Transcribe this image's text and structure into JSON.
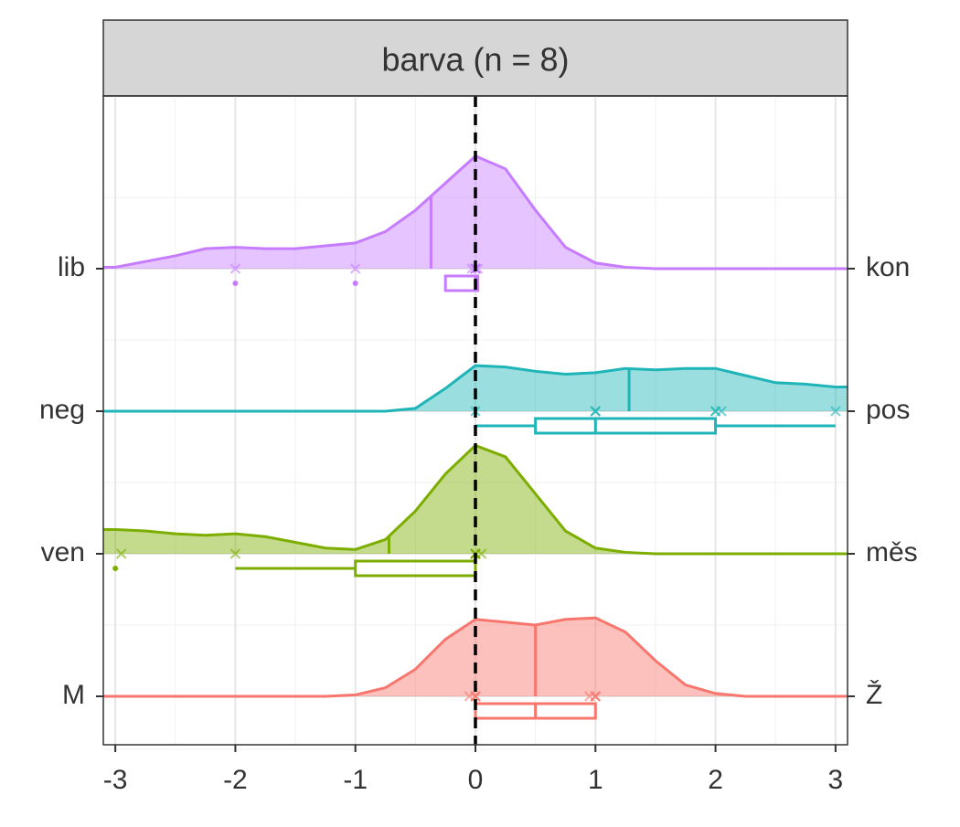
{
  "chart_data": {
    "type": "ridgeline",
    "title": "barva (n = 8)",
    "xlim": [
      -3.1,
      3.1
    ],
    "xticks": [
      -3,
      -2,
      -1,
      0,
      1,
      2,
      3
    ],
    "grid": true,
    "reference_line": 0,
    "density_x": [
      -3.1,
      -3,
      -2.75,
      -2.5,
      -2.25,
      -2,
      -1.75,
      -1.5,
      -1.25,
      -1,
      -0.75,
      -0.5,
      -0.25,
      0,
      0.25,
      0.5,
      0.75,
      1,
      1.25,
      1.5,
      1.75,
      2,
      2.25,
      2.5,
      2.75,
      3,
      3.1
    ],
    "categories": [
      "lib",
      "neg",
      "ven",
      "M"
    ],
    "right_labels": [
      "kon",
      "pos",
      "měs",
      "Ž"
    ],
    "series": [
      {
        "name": "lib",
        "color": "#c77cff",
        "density": [
          0.01,
          0.01,
          0.05,
          0.09,
          0.14,
          0.15,
          0.14,
          0.14,
          0.16,
          0.18,
          0.26,
          0.41,
          0.6,
          0.79,
          0.7,
          0.41,
          0.15,
          0.04,
          0.01,
          0,
          0,
          0,
          0,
          0,
          0,
          0,
          0
        ],
        "mean": -0.37,
        "q1": -0.25,
        "median": 0,
        "q3": 0.02,
        "whisker_low": -0.25,
        "whisker_high": 0.02,
        "outliers": [
          -2,
          -1
        ],
        "points": [
          -2,
          -1,
          -0.03,
          0,
          0,
          0.02,
          0,
          0
        ]
      },
      {
        "name": "neg",
        "color": "#1fb5b8",
        "density": [
          0,
          0,
          0,
          0,
          0,
          0,
          0,
          0,
          0,
          0,
          0,
          0.02,
          0.16,
          0.32,
          0.31,
          0.28,
          0.26,
          0.27,
          0.3,
          0.29,
          0.3,
          0.3,
          0.25,
          0.2,
          0.19,
          0.17,
          0.17
        ],
        "mean": 1.28,
        "q1": 0.5,
        "median": 1,
        "q3": 2,
        "whisker_low": 0,
        "whisker_high": 3,
        "outliers": [],
        "points": [
          0,
          1,
          1,
          2,
          2.05,
          3,
          1,
          2
        ]
      },
      {
        "name": "ven",
        "color": "#7cae00",
        "density": [
          0.17,
          0.17,
          0.16,
          0.14,
          0.13,
          0.14,
          0.12,
          0.08,
          0.04,
          0.03,
          0.1,
          0.3,
          0.56,
          0.76,
          0.68,
          0.42,
          0.16,
          0.04,
          0.01,
          0,
          0,
          0,
          0,
          0,
          0,
          0,
          0
        ],
        "mean": -0.72,
        "q1": -1,
        "median": 0,
        "q3": 0,
        "whisker_low": -2,
        "whisker_high": 0,
        "outliers": [
          -3
        ],
        "points": [
          -2.95,
          -2,
          0,
          0,
          0.05,
          0,
          0,
          0
        ]
      },
      {
        "name": "M",
        "color": "#f8766d",
        "density": [
          0,
          0,
          0,
          0,
          0,
          0,
          0,
          0,
          0,
          0.01,
          0.06,
          0.19,
          0.4,
          0.54,
          0.52,
          0.5,
          0.54,
          0.55,
          0.45,
          0.25,
          0.08,
          0.02,
          0,
          0,
          0,
          0,
          0
        ],
        "mean": 0.5,
        "q1": 0,
        "median": 0.5,
        "q3": 1,
        "whisker_low": 0,
        "whisker_high": 1,
        "outliers": [],
        "points": [
          -0.05,
          0.95,
          1,
          1,
          0,
          0,
          1,
          0
        ]
      }
    ]
  }
}
